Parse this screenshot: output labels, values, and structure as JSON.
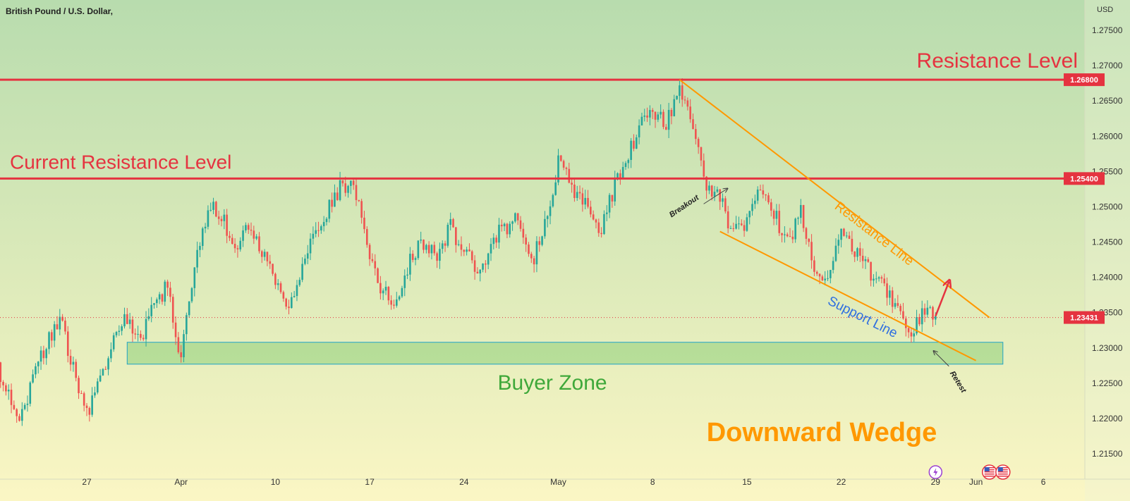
{
  "header": {
    "symbol": "British Pound / U.S. Dollar,",
    "currency": "USD"
  },
  "colors": {
    "up": "#26a69a",
    "down": "#ef5350",
    "level_line": "#e53340",
    "wedge": "#ff9800",
    "support_text": "#2f6fe0",
    "zone_fill": "#8ecf7a",
    "zone_border": "#1fa3c8",
    "bg_top": "#b8dcae",
    "bg_bottom": "#fbf6c4"
  },
  "chart_data": {
    "type": "candlestick",
    "ylim": [
      1.2135,
      1.2775
    ],
    "yticks": [
      "1.27500",
      "1.27000",
      "1.26500",
      "1.26000",
      "1.25500",
      "1.25000",
      "1.24500",
      "1.24000",
      "1.23500",
      "1.23000",
      "1.22500",
      "1.22000",
      "1.21500"
    ],
    "x_ticks": [
      {
        "label": "27",
        "date": "2023-03-27"
      },
      {
        "label": "Apr",
        "date": "2023-04-03"
      },
      {
        "label": "10",
        "date": "2023-04-10"
      },
      {
        "label": "17",
        "date": "2023-04-17"
      },
      {
        "label": "24",
        "date": "2023-04-24"
      },
      {
        "label": "May",
        "date": "2023-05-01"
      },
      {
        "label": "8",
        "date": "2023-05-08"
      },
      {
        "label": "15",
        "date": "2023-05-15"
      },
      {
        "label": "22",
        "date": "2023-05-22"
      },
      {
        "label": "29",
        "date": "2023-05-29"
      },
      {
        "label": "Jun",
        "date": "2023-06-01"
      },
      {
        "label": "6",
        "date": "2023-06-06"
      }
    ],
    "price_path": [
      [
        "2023-03-20",
        1.228
      ],
      [
        "2023-03-21",
        1.225
      ],
      [
        "2023-03-22",
        1.22
      ],
      [
        "2023-03-23",
        1.225
      ],
      [
        "2023-03-24",
        1.231
      ],
      [
        "2023-03-25",
        1.234
      ],
      [
        "2023-03-26",
        1.227
      ],
      [
        "2023-03-27",
        1.221
      ],
      [
        "2023-03-28",
        1.225
      ],
      [
        "2023-03-29",
        1.232
      ],
      [
        "2023-03-30",
        1.234
      ],
      [
        "2023-03-31",
        1.231
      ],
      [
        "2023-04-01",
        1.236
      ],
      [
        "2023-04-02",
        1.239
      ],
      [
        "2023-04-03",
        1.228
      ],
      [
        "2023-04-04",
        1.242
      ],
      [
        "2023-04-05",
        1.25
      ],
      [
        "2023-04-06",
        1.249
      ],
      [
        "2023-04-07",
        1.244
      ],
      [
        "2023-04-08",
        1.247
      ],
      [
        "2023-04-09",
        1.243
      ],
      [
        "2023-04-10",
        1.24
      ],
      [
        "2023-04-11",
        1.236
      ],
      [
        "2023-04-12",
        1.242
      ],
      [
        "2023-04-13",
        1.246
      ],
      [
        "2023-04-14",
        1.25
      ],
      [
        "2023-04-15",
        1.2535
      ],
      [
        "2023-04-16",
        1.252
      ],
      [
        "2023-04-17",
        1.242
      ],
      [
        "2023-04-18",
        1.238
      ],
      [
        "2023-04-19",
        1.236
      ],
      [
        "2023-04-20",
        1.243
      ],
      [
        "2023-04-21",
        1.245
      ],
      [
        "2023-04-22",
        1.243
      ],
      [
        "2023-04-23",
        1.247
      ],
      [
        "2023-04-24",
        1.244
      ],
      [
        "2023-04-25",
        1.24
      ],
      [
        "2023-04-26",
        1.245
      ],
      [
        "2023-04-27",
        1.247
      ],
      [
        "2023-04-28",
        1.249
      ],
      [
        "2023-04-29",
        1.242
      ],
      [
        "2023-04-30",
        1.247
      ],
      [
        "2023-05-01",
        1.256
      ],
      [
        "2023-05-02",
        1.253
      ],
      [
        "2023-05-03",
        1.25
      ],
      [
        "2023-05-04",
        1.246
      ],
      [
        "2023-05-05",
        1.252
      ],
      [
        "2023-05-06",
        1.257
      ],
      [
        "2023-05-07",
        1.261
      ],
      [
        "2023-05-08",
        1.264
      ],
      [
        "2023-05-09",
        1.262
      ],
      [
        "2023-05-10",
        1.266
      ],
      [
        "2023-05-11",
        1.262
      ],
      [
        "2023-05-12",
        1.252
      ],
      [
        "2023-05-13",
        1.251
      ],
      [
        "2023-05-14",
        1.246
      ],
      [
        "2023-05-15",
        1.248
      ],
      [
        "2023-05-16",
        1.253
      ],
      [
        "2023-05-17",
        1.249
      ],
      [
        "2023-05-18",
        1.245
      ],
      [
        "2023-05-19",
        1.249
      ],
      [
        "2023-05-20",
        1.242
      ],
      [
        "2023-05-21",
        1.24
      ],
      [
        "2023-05-22",
        1.246
      ],
      [
        "2023-05-23",
        1.244
      ],
      [
        "2023-05-24",
        1.241
      ],
      [
        "2023-05-25",
        1.24
      ],
      [
        "2023-05-26",
        1.236
      ],
      [
        "2023-05-27",
        1.231
      ],
      [
        "2023-05-28",
        1.235
      ],
      [
        "2023-05-29",
        1.2343
      ]
    ],
    "levels": [
      {
        "label": "Resistance Level",
        "value": 1.268,
        "tag": "1.26800"
      },
      {
        "label": "Current Resistance Level",
        "value": 1.254,
        "tag": "1.25400"
      }
    ],
    "current_price": {
      "value": 1.23431,
      "tag": "1.23431"
    },
    "zone": {
      "label": "Buyer Zone",
      "from_date": "2023-03-30",
      "to_date": "2023-06-03",
      "low": 1.2277,
      "high": 1.2308
    },
    "wedge": {
      "title": "Downward Wedge",
      "resistance": {
        "label": "Resistance Line",
        "start": [
          "2023-05-10",
          1.268
        ],
        "end": [
          "2023-06-02",
          1.2343
        ]
      },
      "support": {
        "label": "Support Line",
        "start": [
          "2023-05-13",
          1.2465
        ],
        "end": [
          "2023-06-01",
          1.2282
        ]
      }
    },
    "annotations": [
      {
        "text": "Breakout",
        "date": "2023-05-12",
        "price": 1.2522
      },
      {
        "text": "Retest",
        "date": "2023-05-29",
        "price": 1.2296
      }
    ],
    "projection": {
      "from": [
        "2023-05-29",
        1.2345
      ],
      "to": [
        "2023-05-30",
        1.2394
      ]
    },
    "event_icons": [
      {
        "name": "lightning-icon",
        "date": "2023-05-29"
      },
      {
        "name": "us-flag-icon",
        "date": "2023-06-02"
      },
      {
        "name": "us-flag-icon",
        "date": "2023-06-03"
      }
    ]
  }
}
